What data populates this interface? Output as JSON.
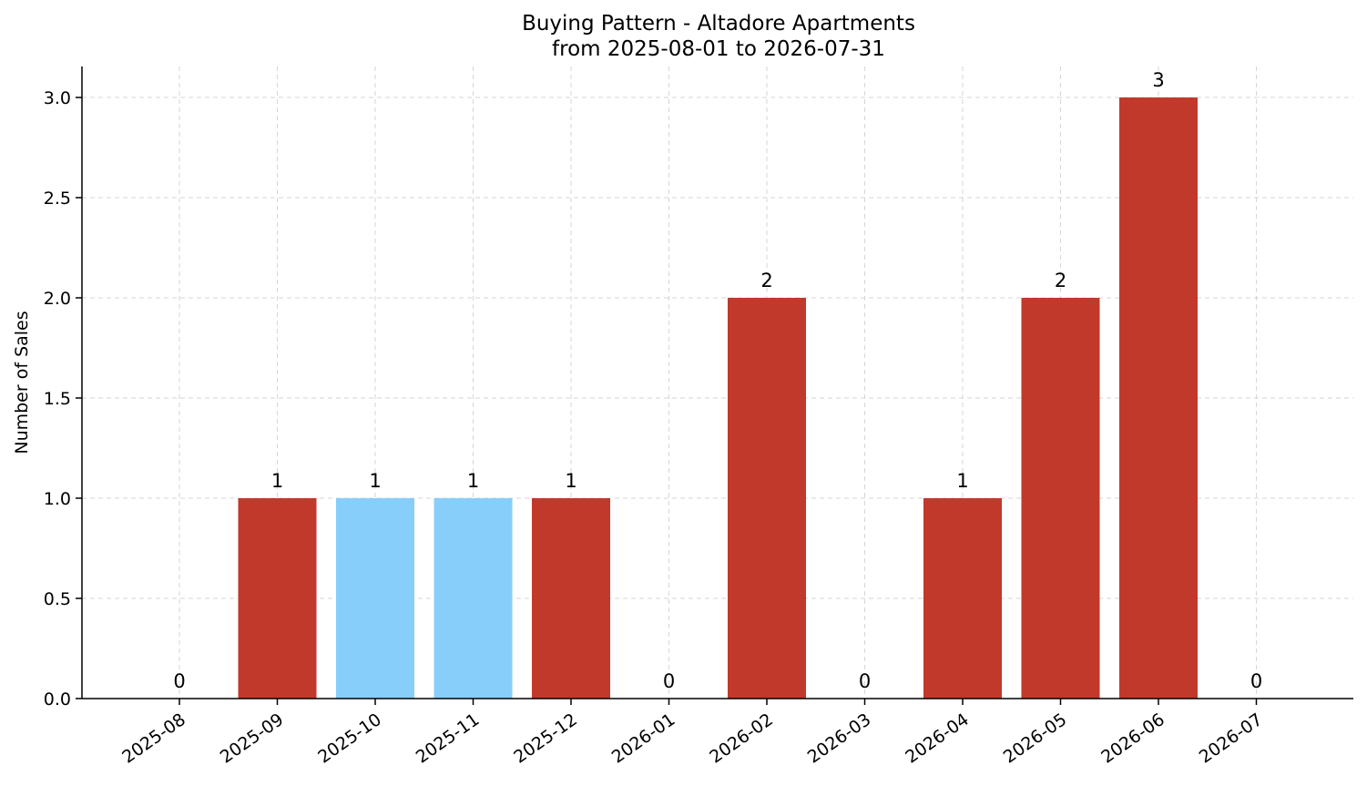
{
  "chart_data": {
    "type": "bar",
    "title": "Buying Pattern - Altadore Apartments",
    "subtitle": "from 2025-08-01 to 2026-07-31",
    "xlabel": "",
    "ylabel": "Number of Sales",
    "categories": [
      "2025-08",
      "2025-09",
      "2025-10",
      "2025-11",
      "2025-12",
      "2026-01",
      "2026-02",
      "2026-03",
      "2026-04",
      "2026-05",
      "2026-06",
      "2026-07"
    ],
    "values": [
      0,
      1,
      1,
      1,
      1,
      0,
      2,
      0,
      1,
      2,
      3,
      0
    ],
    "bar_colors": [
      "#c0392b",
      "#c0392b",
      "#87cefa",
      "#87cefa",
      "#c0392b",
      "#c0392b",
      "#c0392b",
      "#c0392b",
      "#c0392b",
      "#c0392b",
      "#c0392b",
      "#c0392b"
    ],
    "ylim": [
      0,
      3.15
    ],
    "yticks": [
      "0.0",
      "0.5",
      "1.0",
      "1.5",
      "2.0",
      "2.5",
      "3.0"
    ],
    "grid": true,
    "legend": "none"
  }
}
